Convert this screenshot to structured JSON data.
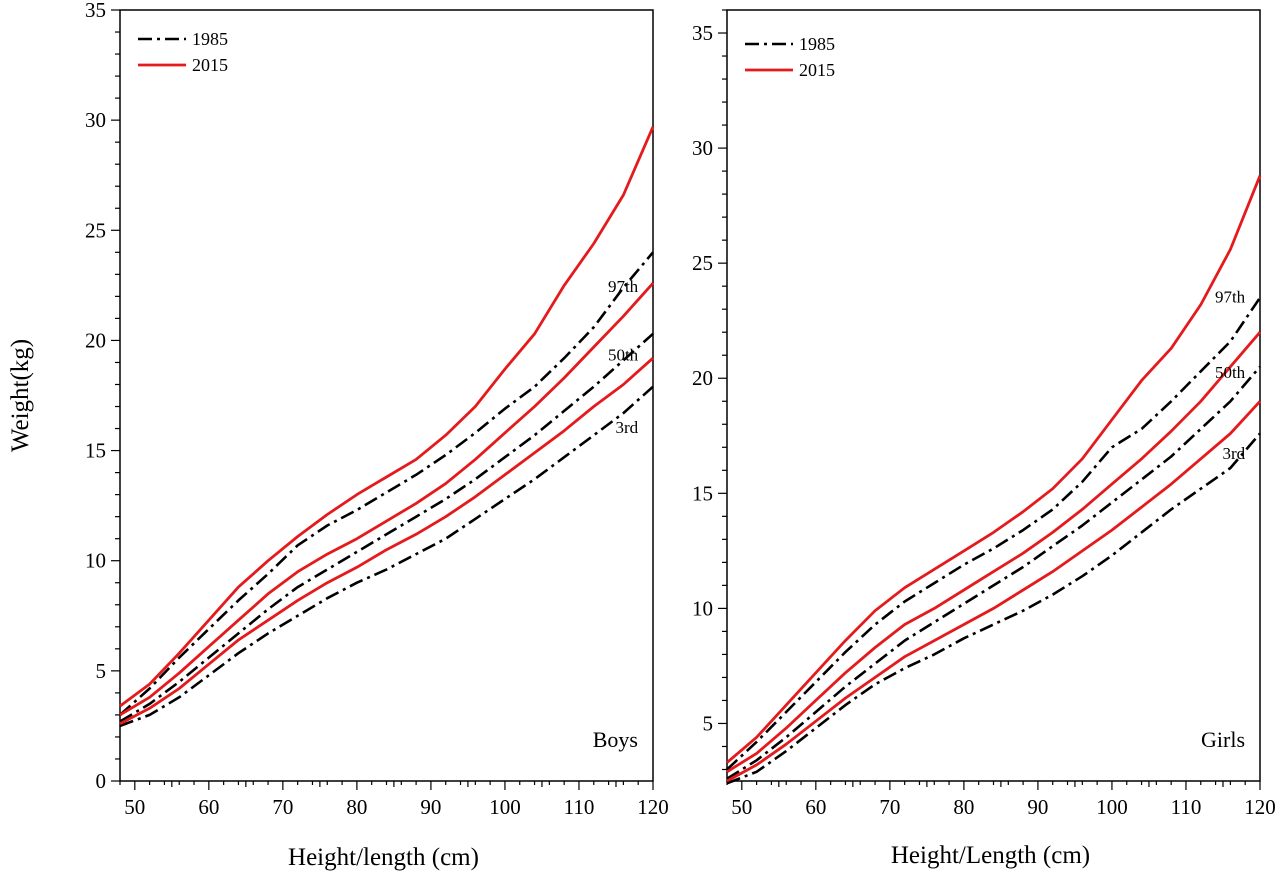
{
  "chart_data": [
    {
      "type": "line",
      "panel_label": "Boys",
      "xlabel": "Height/length (cm)",
      "ylabel": "Weight(kg)",
      "xlim": [
        48,
        120
      ],
      "ylim": [
        0,
        35
      ],
      "xticks": [
        50,
        60,
        70,
        80,
        90,
        100,
        110,
        120
      ],
      "yticks": [
        0,
        5,
        10,
        15,
        20,
        25,
        30,
        35
      ],
      "legend": {
        "placement": "top-left",
        "entries": [
          {
            "label": "1985",
            "style": "dash-dot",
            "color": "#000000"
          },
          {
            "label": "2015",
            "style": "solid",
            "color": "#e41a1c"
          }
        ]
      },
      "percentile_labels": [
        {
          "text": "97th",
          "x": 118,
          "y": 22.2
        },
        {
          "text": "50th",
          "x": 118,
          "y": 19.1
        },
        {
          "text": "3rd",
          "x": 118,
          "y": 15.8
        }
      ],
      "x": [
        48,
        52,
        56,
        60,
        64,
        68,
        72,
        76,
        80,
        84,
        88,
        92,
        96,
        100,
        104,
        108,
        112,
        116,
        120
      ],
      "series": [
        {
          "group": "1985",
          "percentile": "97th",
          "values": [
            3.0,
            4.2,
            5.6,
            6.9,
            8.2,
            9.4,
            10.7,
            11.6,
            12.3,
            13.1,
            13.9,
            14.8,
            15.8,
            16.9,
            17.9,
            19.2,
            20.6,
            22.4,
            24.0
          ]
        },
        {
          "group": "1985",
          "percentile": "50th",
          "values": [
            2.7,
            3.5,
            4.5,
            5.6,
            6.7,
            7.8,
            8.8,
            9.6,
            10.4,
            11.2,
            12.0,
            12.8,
            13.7,
            14.7,
            15.7,
            16.8,
            17.9,
            19.1,
            20.3
          ]
        },
        {
          "group": "1985",
          "percentile": "3rd",
          "values": [
            2.5,
            3.0,
            3.8,
            4.8,
            5.8,
            6.7,
            7.5,
            8.3,
            9.0,
            9.6,
            10.3,
            11.0,
            11.9,
            12.8,
            13.7,
            14.7,
            15.7,
            16.7,
            17.9
          ]
        },
        {
          "group": "2015",
          "percentile": "97th",
          "values": [
            3.4,
            4.4,
            5.8,
            7.3,
            8.8,
            10.0,
            11.1,
            12.1,
            13.0,
            13.8,
            14.6,
            15.7,
            17.0,
            18.7,
            20.3,
            22.5,
            24.4,
            26.6,
            29.7
          ]
        },
        {
          "group": "2015",
          "percentile": "50th",
          "values": [
            3.0,
            3.8,
            4.9,
            6.1,
            7.3,
            8.5,
            9.5,
            10.3,
            11.0,
            11.8,
            12.6,
            13.5,
            14.6,
            15.8,
            17.0,
            18.3,
            19.7,
            21.1,
            22.6
          ]
        },
        {
          "group": "2015",
          "percentile": "3rd",
          "values": [
            2.6,
            3.3,
            4.2,
            5.3,
            6.4,
            7.3,
            8.2,
            9.0,
            9.7,
            10.5,
            11.2,
            12.0,
            12.9,
            13.9,
            14.9,
            15.9,
            17.0,
            18.0,
            19.2
          ]
        }
      ]
    },
    {
      "type": "line",
      "panel_label": "Girls",
      "xlabel": "Height/Length (cm)",
      "ylabel": "",
      "xlim": [
        48,
        120
      ],
      "ylim": [
        2.5,
        36
      ],
      "xticks": [
        50,
        60,
        70,
        80,
        90,
        100,
        110,
        120
      ],
      "yticks": [
        5,
        10,
        15,
        20,
        25,
        30,
        35
      ],
      "legend": {
        "placement": "top-left",
        "entries": [
          {
            "label": "1985",
            "style": "dash-dot",
            "color": "#000000"
          },
          {
            "label": "2015",
            "style": "solid",
            "color": "#e41a1c"
          }
        ]
      },
      "percentile_labels": [
        {
          "text": "97th",
          "x": 118,
          "y": 23.3
        },
        {
          "text": "50th",
          "x": 118,
          "y": 20.0
        },
        {
          "text": "3rd",
          "x": 118,
          "y": 16.5
        }
      ],
      "x": [
        48,
        52,
        56,
        60,
        64,
        68,
        72,
        76,
        80,
        84,
        88,
        92,
        96,
        100,
        104,
        108,
        112,
        116,
        120
      ],
      "series": [
        {
          "group": "1985",
          "percentile": "97th",
          "values": [
            3.0,
            4.2,
            5.5,
            6.8,
            8.1,
            9.3,
            10.3,
            11.1,
            11.9,
            12.6,
            13.4,
            14.3,
            15.5,
            17.0,
            17.8,
            19.0,
            20.3,
            21.6,
            23.5
          ]
        },
        {
          "group": "1985",
          "percentile": "50th",
          "values": [
            2.6,
            3.4,
            4.4,
            5.5,
            6.6,
            7.6,
            8.6,
            9.4,
            10.2,
            11.0,
            11.8,
            12.7,
            13.6,
            14.6,
            15.6,
            16.6,
            17.8,
            19.0,
            20.5
          ]
        },
        {
          "group": "1985",
          "percentile": "3rd",
          "values": [
            2.4,
            2.9,
            3.8,
            4.8,
            5.8,
            6.7,
            7.4,
            8.0,
            8.7,
            9.3,
            9.9,
            10.6,
            11.4,
            12.3,
            13.3,
            14.3,
            15.2,
            16.1,
            17.6
          ]
        },
        {
          "group": "2015",
          "percentile": "97th",
          "values": [
            3.3,
            4.4,
            5.8,
            7.2,
            8.6,
            9.9,
            10.9,
            11.7,
            12.5,
            13.3,
            14.2,
            15.2,
            16.5,
            18.2,
            19.9,
            21.3,
            23.2,
            25.6,
            28.8
          ]
        },
        {
          "group": "2015",
          "percentile": "50th",
          "values": [
            2.9,
            3.7,
            4.8,
            6.0,
            7.2,
            8.3,
            9.3,
            10.0,
            10.8,
            11.6,
            12.4,
            13.3,
            14.3,
            15.4,
            16.5,
            17.7,
            19.0,
            20.5,
            22.0
          ]
        },
        {
          "group": "2015",
          "percentile": "3rd",
          "values": [
            2.5,
            3.2,
            4.1,
            5.1,
            6.1,
            7.0,
            7.9,
            8.6,
            9.3,
            10.0,
            10.8,
            11.6,
            12.5,
            13.4,
            14.4,
            15.4,
            16.5,
            17.6,
            19.0
          ]
        }
      ]
    }
  ]
}
